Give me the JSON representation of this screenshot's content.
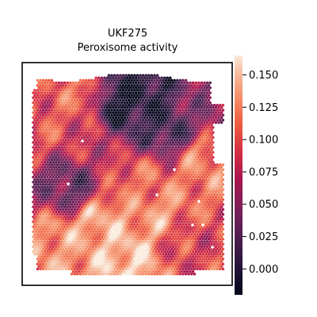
{
  "chart_data": {
    "type": "heatmap",
    "title": "UKF275",
    "subtitle": "Peroxisome activity",
    "colormap": "rocket",
    "colorbar": {
      "range": [
        -0.02,
        0.165
      ],
      "ticks": [
        0.0,
        0.025,
        0.05,
        0.075,
        0.1,
        0.125,
        0.15
      ],
      "tick_labels": [
        "0.000",
        "0.025",
        "0.050",
        "0.075",
        "0.100",
        "0.125",
        "0.150"
      ]
    },
    "grid": false,
    "axes_ticks": false,
    "field": {
      "description_levels": [
        {
          "x": 0.45,
          "y": 0.15,
          "value": -0.01
        },
        {
          "x": 0.58,
          "y": 0.12,
          "value": -0.005
        },
        {
          "x": 0.7,
          "y": 0.25,
          "value": 0.01
        },
        {
          "x": 0.25,
          "y": 0.1,
          "value": 0.11
        },
        {
          "x": 0.12,
          "y": 0.25,
          "value": 0.1
        },
        {
          "x": 0.3,
          "y": 0.35,
          "value": 0.08
        },
        {
          "x": 0.88,
          "y": 0.15,
          "value": 0.05
        },
        {
          "x": 0.9,
          "y": 0.45,
          "value": 0.12
        },
        {
          "x": 0.2,
          "y": 0.55,
          "value": 0.03
        },
        {
          "x": 0.55,
          "y": 0.55,
          "value": 0.11
        },
        {
          "x": 0.65,
          "y": 0.7,
          "value": 0.13
        },
        {
          "x": 0.35,
          "y": 0.75,
          "value": 0.14
        },
        {
          "x": 0.15,
          "y": 0.85,
          "value": 0.13
        },
        {
          "x": 0.8,
          "y": 0.85,
          "value": 0.09
        },
        {
          "x": 0.5,
          "y": 0.92,
          "value": 0.15
        }
      ]
    }
  }
}
